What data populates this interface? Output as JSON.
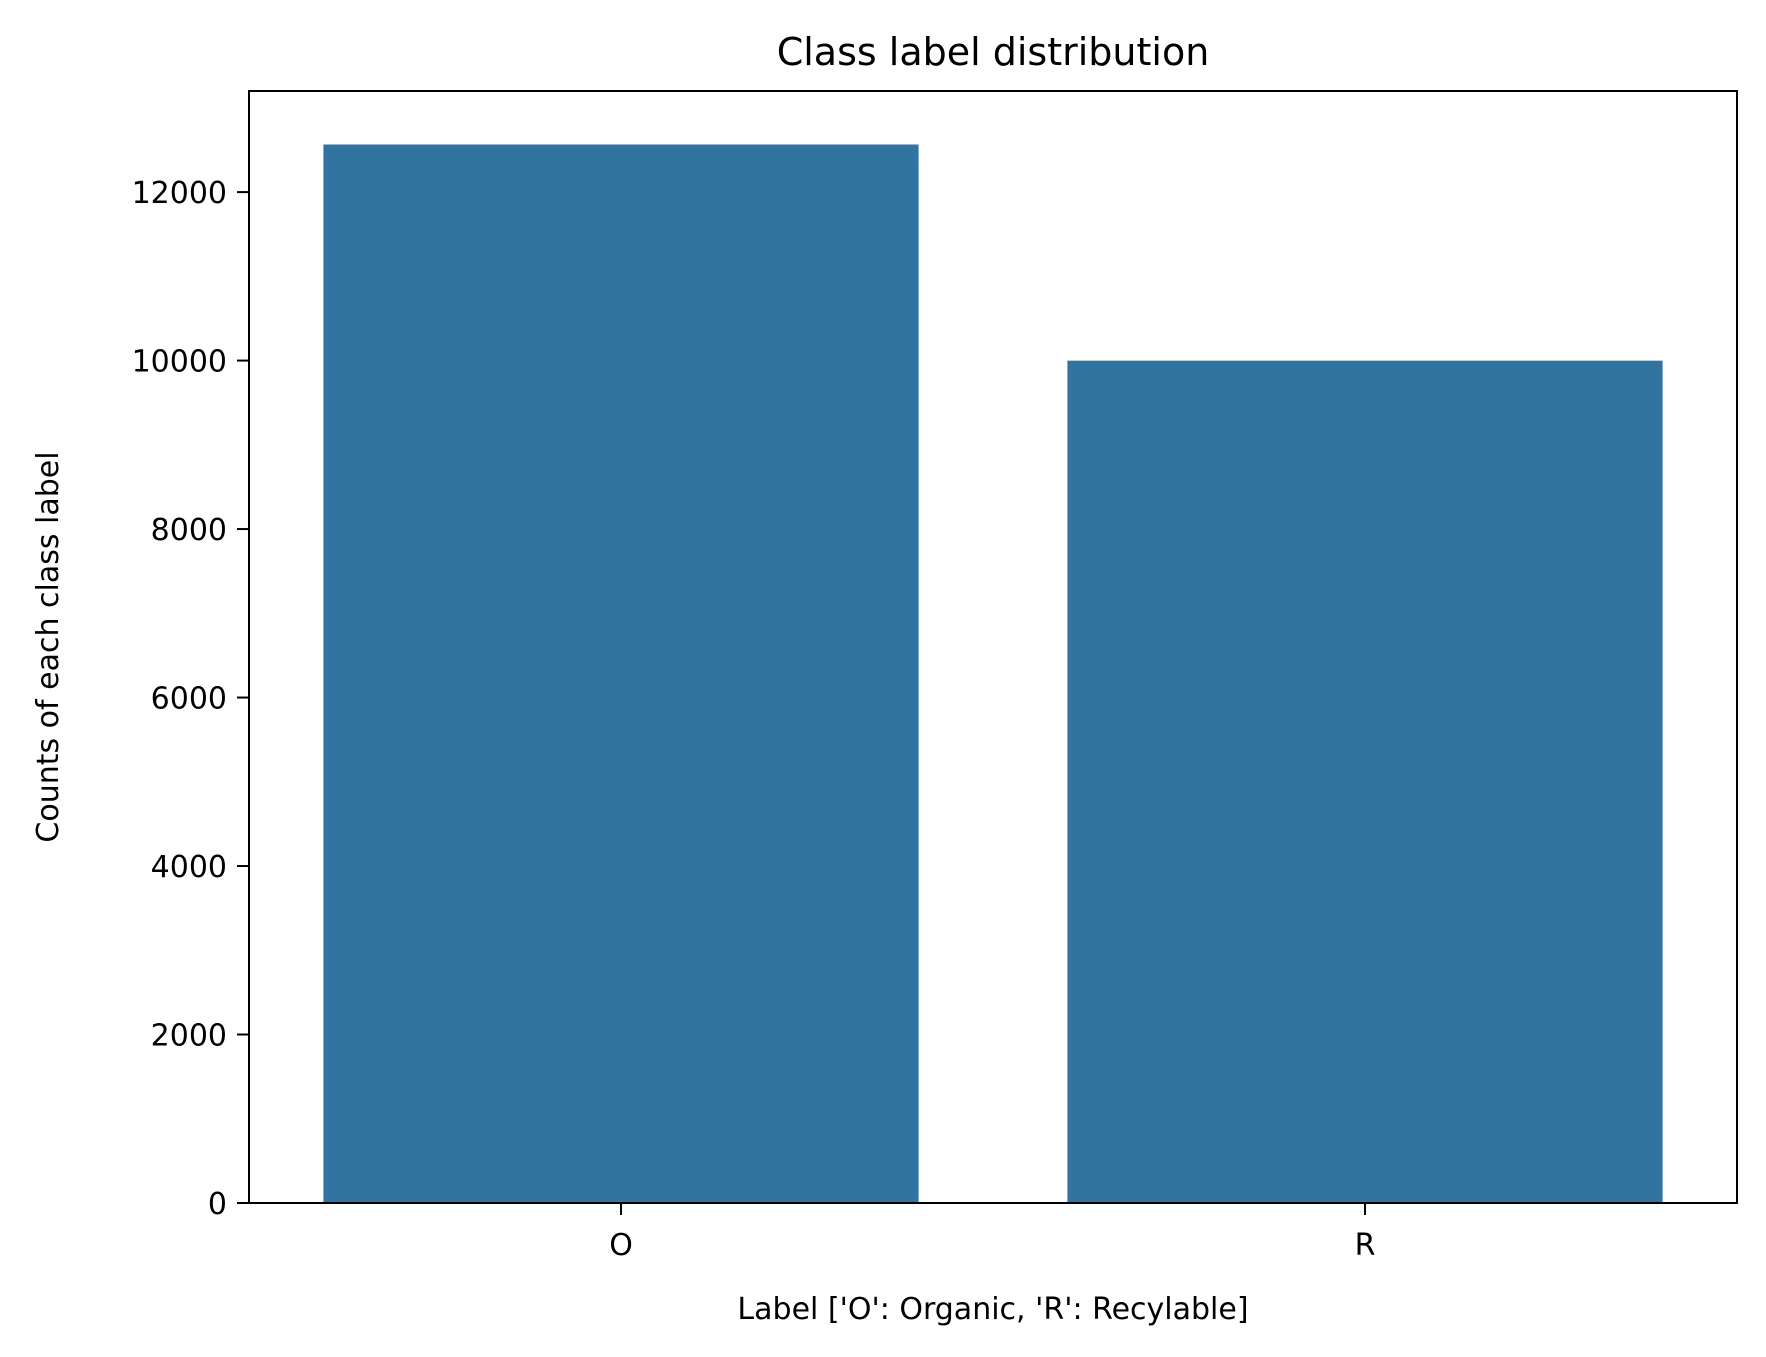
{
  "chart_data": {
    "type": "bar",
    "title": "Class label distribution",
    "xlabel": "Label ['O': Organic, 'R': Recylable]",
    "ylabel": "Counts of each class label",
    "categories": [
      "O",
      "R"
    ],
    "values": [
      12565,
      9999
    ],
    "ylim": [
      0,
      13200
    ],
    "yticks": [
      0,
      2000,
      4000,
      6000,
      8000,
      10000,
      12000
    ],
    "ytick_labels": [
      "0",
      "2000",
      "4000",
      "6000",
      "8000",
      "10000",
      "12000"
    ],
    "bar_color": "#3274a1",
    "grid": false,
    "legend": "none"
  }
}
